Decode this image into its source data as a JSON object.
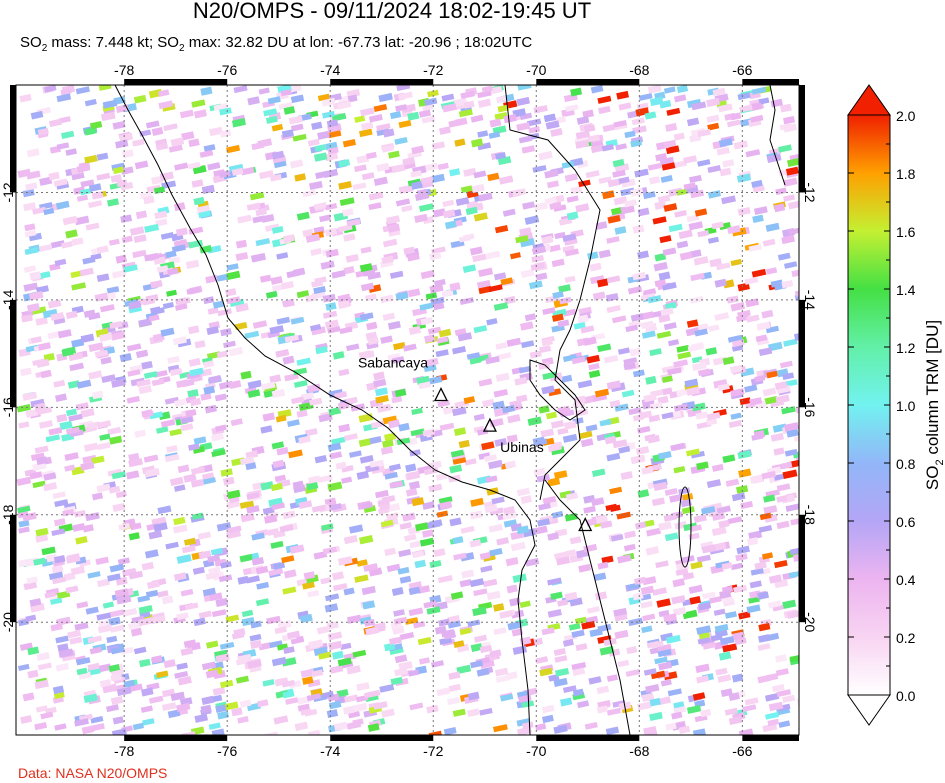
{
  "title": "N20/OMPS - 09/11/2024 18:02-19:45 UT",
  "subtitle": {
    "so": "SO",
    "sub": "2",
    "mass_text": " mass: 7.448 kt; ",
    "max_text": " max: 32.82 DU at lon: -67.73 lat: -20.96 ; 18:02UTC"
  },
  "map": {
    "lon_range": [
      -80.1,
      -64.9
    ],
    "lat_range": [
      -22.1,
      -10.0
    ],
    "lon_ticks": [
      "-78",
      "-76",
      "-74",
      "-72",
      "-70",
      "-68",
      "-66"
    ],
    "lat_ticks": [
      "-12",
      "-14",
      "-16",
      "-18",
      "-20"
    ],
    "gridlines": true,
    "volcanoes": [
      {
        "name": "Sabancaya",
        "lon": -71.85,
        "lat": -15.78,
        "labeled": true
      },
      {
        "name": "Ubinas",
        "lon": -70.9,
        "lat": -16.35,
        "labeled": true
      },
      {
        "name": "",
        "lon": -69.05,
        "lat": -18.2,
        "labeled": false
      }
    ]
  },
  "colorbar": {
    "label": "SO2 column TRM [DU]",
    "label_so": "SO",
    "label_sub": "2",
    "label_rest": " column TRM [DU]",
    "min": 0.0,
    "max": 2.0,
    "ticks": [
      "0.0",
      "0.2",
      "0.4",
      "0.6",
      "0.8",
      "1.0",
      "1.2",
      "1.4",
      "1.6",
      "1.8",
      "2.0"
    ],
    "colors": [
      "#ffffff",
      "#f8d4f2",
      "#ecb4f0",
      "#b4a6f6",
      "#92b6f8",
      "#72f2f0",
      "#62f0a8",
      "#44e044",
      "#c4f032",
      "#ffa000",
      "#f02000"
    ],
    "extend": "both"
  },
  "credit": "Data: NASA N20/OMPS"
}
